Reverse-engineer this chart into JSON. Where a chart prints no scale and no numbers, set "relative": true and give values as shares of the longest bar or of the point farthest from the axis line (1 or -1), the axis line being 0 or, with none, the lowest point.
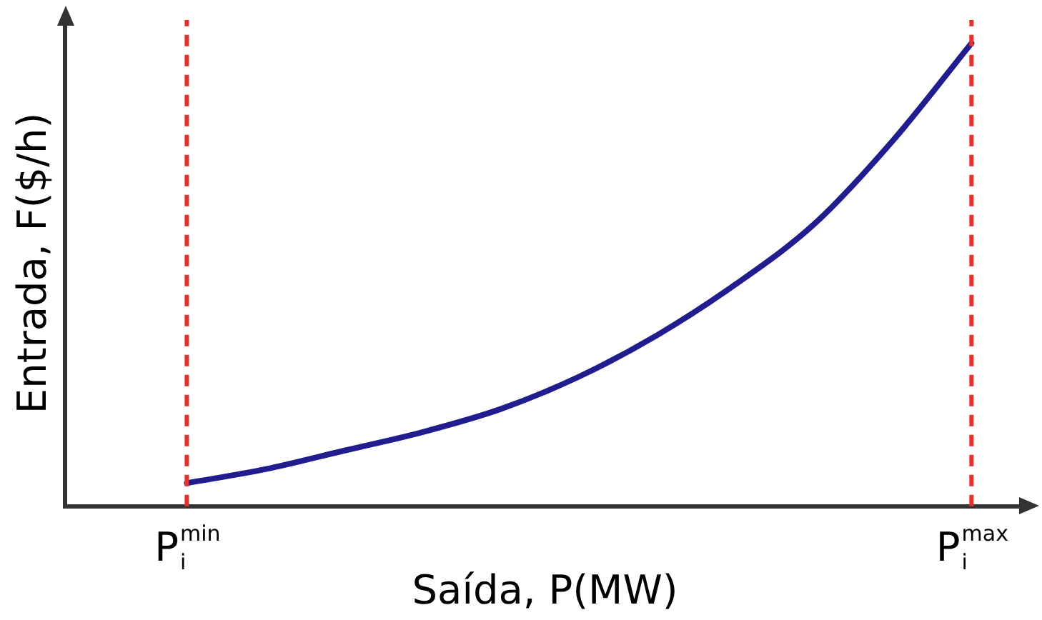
{
  "chart_data": {
    "type": "line",
    "relative": true,
    "xlabel": "Saída, P(MW)",
    "ylabel": "Entrada, F($/h)",
    "categories": [
      "P$_{i}$$^{min}$",
      null,
      null,
      null,
      null,
      null,
      null,
      null,
      null,
      null,
      "P$_{i}$$^{max}$"
    ],
    "series": [
      {
        "color": "#211d8f",
        "values": [
          0.05,
          0.08,
          0.12,
          0.16,
          0.21,
          0.28,
          0.37,
          0.48,
          0.61,
          0.79,
          1
        ]
      }
    ],
    "ref_lines": [
      {
        "axis": "x",
        "value": "P$_{i}$$^{min}$",
        "color": "#e8302a",
        "line_style": "dashed"
      },
      {
        "axis": "x",
        "value": "P$_{i}$$^{max}$",
        "color": "#e8302a",
        "line_style": "dashed"
      }
    ],
    "grid": false,
    "legend": false,
    "marker": "none",
    "line_style": "solid"
  }
}
